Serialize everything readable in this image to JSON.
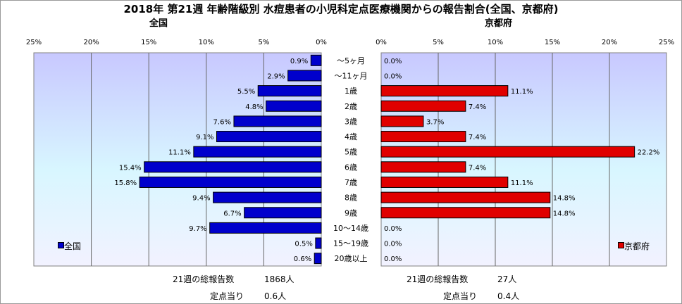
{
  "title": "2018年 第21週 年齢階級別 水痘患者の小児科定点医療機関からの報告割合(全国、京都府)",
  "left_panel": {
    "label": "全国",
    "legend": "全国",
    "color": "#0000cc",
    "total_label": "21週の総報告数",
    "total_value": "1868人",
    "per_label": "定点当り",
    "per_value": "0.6人"
  },
  "right_panel": {
    "label": "京都府",
    "legend": "京都府",
    "color": "#e00000",
    "total_label": "21週の総報告数",
    "total_value": "27人",
    "per_label": "定点当り",
    "per_value": "0.4人"
  },
  "chart_data": {
    "type": "bar",
    "orientation": "horizontal",
    "categories": [
      "～5ヶ月",
      "～11ヶ月",
      "1歳",
      "2歳",
      "3歳",
      "4歳",
      "5歳",
      "6歳",
      "7歳",
      "8歳",
      "9歳",
      "10～14歳",
      "15～19歳",
      "20歳以上"
    ],
    "ticks_left": [
      "25%",
      "20%",
      "15%",
      "10%",
      "5%",
      "0%"
    ],
    "ticks_right": [
      "0%",
      "5%",
      "10%",
      "15%",
      "20%",
      "25%"
    ],
    "xlim": [
      0,
      25
    ],
    "series": [
      {
        "name": "全国",
        "values": [
          0.9,
          2.9,
          5.5,
          4.8,
          7.6,
          9.1,
          11.1,
          15.4,
          15.8,
          9.4,
          6.7,
          9.7,
          0.5,
          0.6
        ],
        "labels": [
          "0.9%",
          "2.9%",
          "5.5%",
          "4.8%",
          "7.6%",
          "9.1%",
          "11.1%",
          "15.4%",
          "15.8%",
          "9.4%",
          "6.7%",
          "9.7%",
          "0.5%",
          "0.6%"
        ]
      },
      {
        "name": "京都府",
        "values": [
          0.0,
          0.0,
          11.1,
          7.4,
          3.7,
          7.4,
          22.2,
          7.4,
          11.1,
          14.8,
          14.8,
          0.0,
          0.0,
          0.0
        ],
        "labels": [
          "0.0%",
          "0.0%",
          "11.1%",
          "7.4%",
          "3.7%",
          "7.4%",
          "22.2%",
          "7.4%",
          "11.1%",
          "14.8%",
          "14.8%",
          "0.0%",
          "0.0%",
          "0.0%"
        ]
      }
    ]
  }
}
